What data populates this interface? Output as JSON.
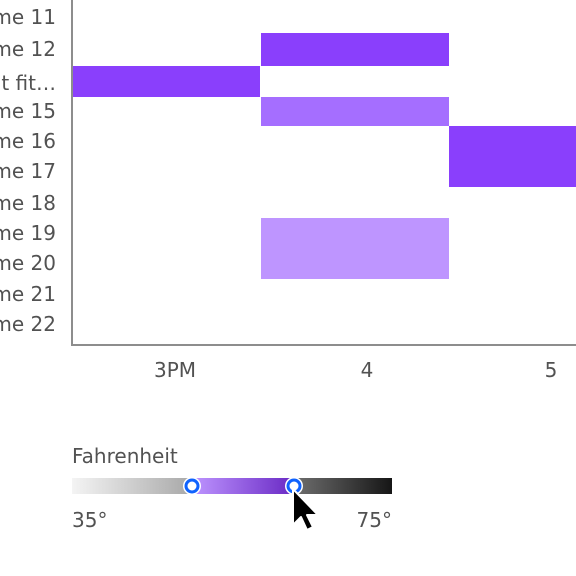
{
  "chart_data": {
    "type": "heatmap",
    "rows": [
      "me 11",
      "me 12",
      "’t fit…",
      "me 15",
      "me 16",
      "me 17",
      "me 18",
      "me 19",
      "me 20",
      "me 21",
      "me 22"
    ],
    "columns": [
      "3PM",
      "4",
      "5"
    ],
    "cells": [
      {
        "row": "me 12",
        "column": "4",
        "value": 66
      },
      {
        "row": "’t fit…",
        "column": "3PM",
        "value": 66
      },
      {
        "row": "me 15",
        "column": "4",
        "value": 58
      },
      {
        "row": "me 16",
        "column": "5",
        "value": 66
      },
      {
        "row": "me 17",
        "column": "5",
        "value": 66
      },
      {
        "row": "me 19",
        "column": "4",
        "value": 54
      },
      {
        "row": "me 20",
        "column": "4",
        "value": 54
      }
    ],
    "legend": {
      "title": "Fahrenheit",
      "min_label": "35°",
      "max_label": "75°",
      "domain": [
        35,
        75
      ],
      "selected_range": [
        50,
        63
      ]
    }
  },
  "colors": {
    "cell_strong": "#8a3ffc",
    "cell_medium": "#a56eff",
    "cell_light": "#be95ff",
    "axis": "#8d8d8d",
    "handle": "#0f62fe",
    "label": "#525252"
  }
}
